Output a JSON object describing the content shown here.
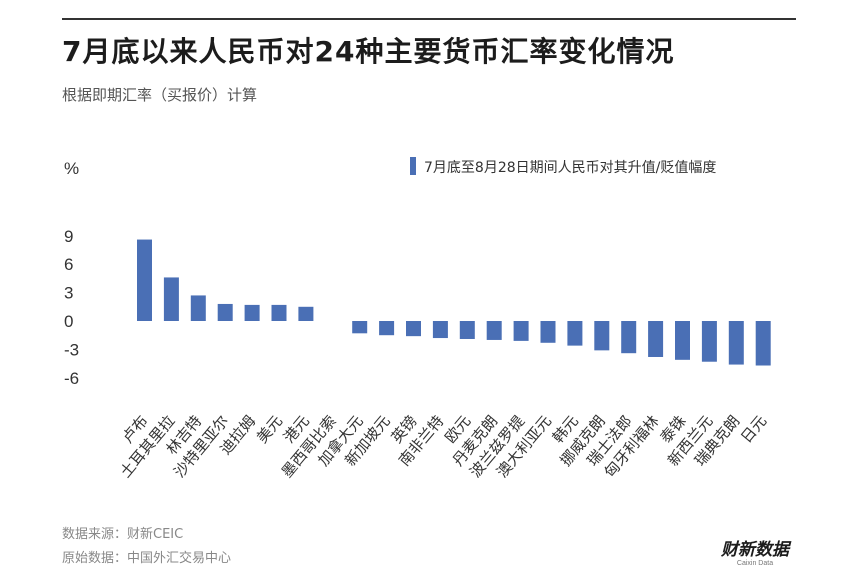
{
  "title": "7月底以来人民币对24种主要货币汇率变化情况",
  "subtitle": "根据即期汇率（买报价）计算",
  "footer": {
    "source": "数据来源：财新CEIC",
    "raw_data": "原始数据：中国外汇交易中心"
  },
  "brand": {
    "name": "财新数据",
    "sub": "Caixin Data"
  },
  "colors": {
    "bar": "#4a6fb5"
  },
  "chart_data": {
    "type": "bar",
    "ylabel": "%",
    "ylim": [
      -6,
      9
    ],
    "yticks": [
      9,
      6,
      3,
      0,
      -3,
      -6
    ],
    "grid": false,
    "legend_position": "top-right",
    "categories": [
      "卢布",
      "土耳其里拉",
      "林吉特",
      "沙特里亚尔",
      "迪拉姆",
      "美元",
      "港元",
      "墨西哥比索",
      "加拿大元",
      "新加坡元",
      "英镑",
      "南非兰特",
      "欧元",
      "丹麦克朗",
      "波兰兹罗提",
      "澳大利亚元",
      "韩元",
      "挪威克朗",
      "瑞士法郎",
      "匈牙利福林",
      "泰铢",
      "新西兰元",
      "瑞典克朗",
      "日元"
    ],
    "series": [
      {
        "name": "7月底至8月28日期间人民币对其升值/贬值幅度",
        "values": [
          8.6,
          4.6,
          2.7,
          1.8,
          1.7,
          1.7,
          1.5,
          0.0,
          -1.3,
          -1.5,
          -1.6,
          -1.8,
          -1.9,
          -2.0,
          -2.1,
          -2.3,
          -2.6,
          -3.1,
          -3.4,
          -3.8,
          -4.1,
          -4.3,
          -4.6,
          -4.7
        ]
      }
    ]
  }
}
